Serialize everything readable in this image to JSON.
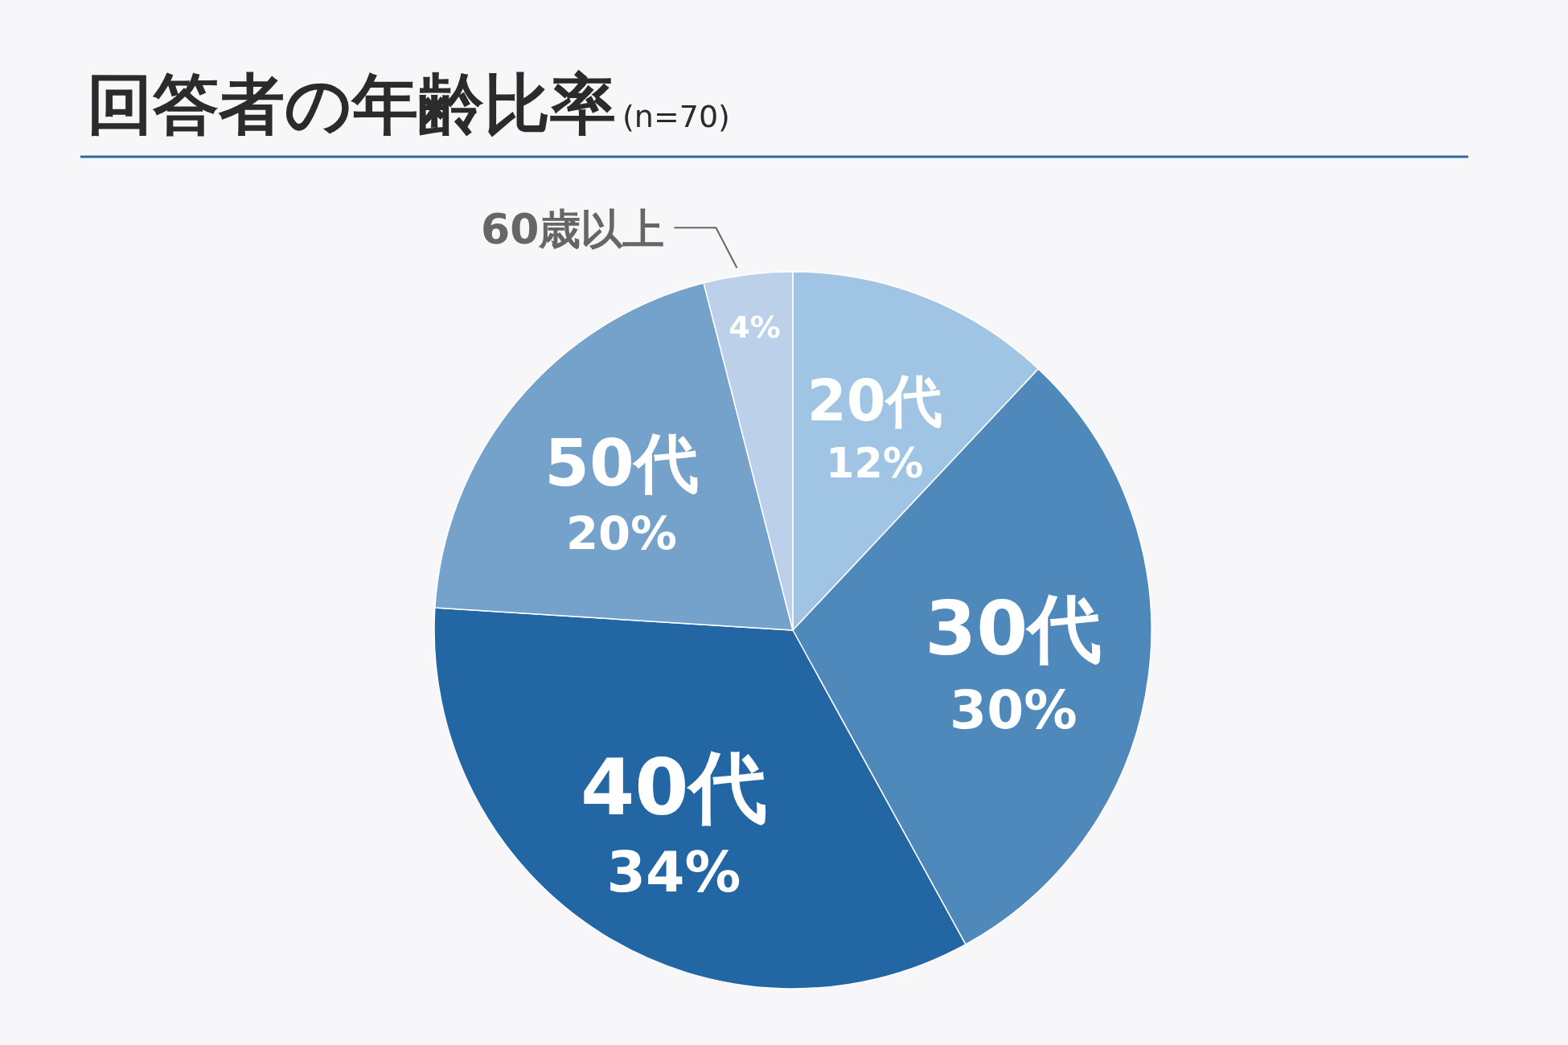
{
  "chart_data": {
    "type": "pie",
    "title": "回答者の年齢比率",
    "subtitle": "(n=70)",
    "categories": [
      "20代",
      "30代",
      "40代",
      "50代",
      "60歳以上"
    ],
    "values": [
      12,
      30,
      34,
      20,
      4
    ],
    "colors": [
      "#a0c4e4",
      "#4f88bb",
      "#2266a3",
      "#74a2ca",
      "#bcd0ea"
    ],
    "value_labels": [
      "12%",
      "30%",
      "34%",
      "20%",
      "4%"
    ]
  }
}
